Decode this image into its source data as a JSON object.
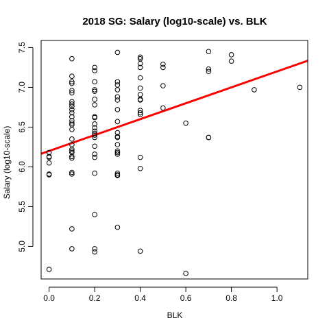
{
  "chart_data": {
    "type": "scatter",
    "title": "2018 SG: Salary (log10-scale) vs. BLK",
    "xlabel": "BLK",
    "ylabel": "Salary (log10-scale)",
    "xlim": [
      -0.035,
      1.135
    ],
    "ylim": [
      4.59,
      7.59
    ],
    "xticks": [
      0.0,
      0.2,
      0.4,
      0.6,
      0.8,
      1.0
    ],
    "xtick_labels": [
      "0.0",
      "0.2",
      "0.4",
      "0.6",
      "0.8",
      "1.0"
    ],
    "yticks": [
      5.0,
      5.5,
      6.0,
      6.5,
      7.0,
      7.5
    ],
    "ytick_labels": [
      "5.0",
      "5.5",
      "6.0",
      "6.5",
      "7.0",
      "7.5"
    ],
    "grid": false,
    "point_color": "#000000",
    "fit_line_color": "#ff0000",
    "fit_line": {
      "intercept": 6.2,
      "slope": 1.0
    },
    "points": [
      {
        "x": 0.0,
        "y": 6.18
      },
      {
        "x": 0.0,
        "y": 6.13
      },
      {
        "x": 0.0,
        "y": 6.12
      },
      {
        "x": 0.0,
        "y": 6.05
      },
      {
        "x": 0.0,
        "y": 5.91
      },
      {
        "x": 0.0,
        "y": 5.9
      },
      {
        "x": 0.0,
        "y": 4.71
      },
      {
        "x": 0.1,
        "y": 7.36
      },
      {
        "x": 0.1,
        "y": 7.14
      },
      {
        "x": 0.1,
        "y": 7.07
      },
      {
        "x": 0.1,
        "y": 7.05
      },
      {
        "x": 0.1,
        "y": 6.96
      },
      {
        "x": 0.1,
        "y": 6.93
      },
      {
        "x": 0.1,
        "y": 6.82
      },
      {
        "x": 0.1,
        "y": 6.79
      },
      {
        "x": 0.1,
        "y": 6.76
      },
      {
        "x": 0.1,
        "y": 6.72
      },
      {
        "x": 0.1,
        "y": 6.68
      },
      {
        "x": 0.1,
        "y": 6.63
      },
      {
        "x": 0.1,
        "y": 6.58
      },
      {
        "x": 0.1,
        "y": 6.55
      },
      {
        "x": 0.1,
        "y": 6.53
      },
      {
        "x": 0.1,
        "y": 6.47
      },
      {
        "x": 0.1,
        "y": 6.35
      },
      {
        "x": 0.1,
        "y": 6.28
      },
      {
        "x": 0.1,
        "y": 6.22
      },
      {
        "x": 0.1,
        "y": 6.2
      },
      {
        "x": 0.1,
        "y": 6.18
      },
      {
        "x": 0.1,
        "y": 6.13
      },
      {
        "x": 0.1,
        "y": 6.11
      },
      {
        "x": 0.1,
        "y": 5.93
      },
      {
        "x": 0.1,
        "y": 5.91
      },
      {
        "x": 0.1,
        "y": 5.22
      },
      {
        "x": 0.1,
        "y": 4.97
      },
      {
        "x": 0.2,
        "y": 7.25
      },
      {
        "x": 0.2,
        "y": 7.21
      },
      {
        "x": 0.2,
        "y": 7.07
      },
      {
        "x": 0.2,
        "y": 6.97
      },
      {
        "x": 0.2,
        "y": 6.95
      },
      {
        "x": 0.2,
        "y": 6.85
      },
      {
        "x": 0.2,
        "y": 6.78
      },
      {
        "x": 0.2,
        "y": 6.63
      },
      {
        "x": 0.2,
        "y": 6.62
      },
      {
        "x": 0.2,
        "y": 6.54
      },
      {
        "x": 0.2,
        "y": 6.49
      },
      {
        "x": 0.2,
        "y": 6.45
      },
      {
        "x": 0.2,
        "y": 6.42
      },
      {
        "x": 0.2,
        "y": 6.4
      },
      {
        "x": 0.2,
        "y": 6.37
      },
      {
        "x": 0.2,
        "y": 6.26
      },
      {
        "x": 0.2,
        "y": 6.16
      },
      {
        "x": 0.2,
        "y": 6.12
      },
      {
        "x": 0.2,
        "y": 5.92
      },
      {
        "x": 0.2,
        "y": 5.4
      },
      {
        "x": 0.2,
        "y": 4.97
      },
      {
        "x": 0.2,
        "y": 4.93
      },
      {
        "x": 0.3,
        "y": 7.44
      },
      {
        "x": 0.3,
        "y": 7.07
      },
      {
        "x": 0.3,
        "y": 7.03
      },
      {
        "x": 0.3,
        "y": 6.97
      },
      {
        "x": 0.3,
        "y": 6.88
      },
      {
        "x": 0.3,
        "y": 6.84
      },
      {
        "x": 0.3,
        "y": 6.72
      },
      {
        "x": 0.3,
        "y": 6.57
      },
      {
        "x": 0.3,
        "y": 6.43
      },
      {
        "x": 0.3,
        "y": 6.38
      },
      {
        "x": 0.3,
        "y": 6.37
      },
      {
        "x": 0.3,
        "y": 6.28
      },
      {
        "x": 0.3,
        "y": 6.2
      },
      {
        "x": 0.3,
        "y": 6.18
      },
      {
        "x": 0.3,
        "y": 6.16
      },
      {
        "x": 0.3,
        "y": 5.92
      },
      {
        "x": 0.3,
        "y": 5.9
      },
      {
        "x": 0.3,
        "y": 5.89
      },
      {
        "x": 0.3,
        "y": 5.24
      },
      {
        "x": 0.4,
        "y": 7.38
      },
      {
        "x": 0.4,
        "y": 7.36
      },
      {
        "x": 0.4,
        "y": 7.3
      },
      {
        "x": 0.4,
        "y": 7.25
      },
      {
        "x": 0.4,
        "y": 7.12
      },
      {
        "x": 0.4,
        "y": 6.99
      },
      {
        "x": 0.4,
        "y": 6.91
      },
      {
        "x": 0.4,
        "y": 6.85
      },
      {
        "x": 0.4,
        "y": 6.84
      },
      {
        "x": 0.4,
        "y": 6.71
      },
      {
        "x": 0.4,
        "y": 6.68
      },
      {
        "x": 0.4,
        "y": 6.66
      },
      {
        "x": 0.4,
        "y": 6.12
      },
      {
        "x": 0.4,
        "y": 5.98
      },
      {
        "x": 0.4,
        "y": 4.94
      },
      {
        "x": 0.5,
        "y": 7.29
      },
      {
        "x": 0.5,
        "y": 7.25
      },
      {
        "x": 0.5,
        "y": 7.02
      },
      {
        "x": 0.5,
        "y": 6.74
      },
      {
        "x": 0.6,
        "y": 6.55
      },
      {
        "x": 0.6,
        "y": 4.66
      },
      {
        "x": 0.7,
        "y": 7.45
      },
      {
        "x": 0.7,
        "y": 7.23
      },
      {
        "x": 0.7,
        "y": 7.2
      },
      {
        "x": 0.7,
        "y": 6.37
      },
      {
        "x": 0.7,
        "y": 6.37
      },
      {
        "x": 0.8,
        "y": 7.41
      },
      {
        "x": 0.8,
        "y": 7.33
      },
      {
        "x": 0.9,
        "y": 6.97
      },
      {
        "x": 1.1,
        "y": 7.0
      }
    ]
  }
}
